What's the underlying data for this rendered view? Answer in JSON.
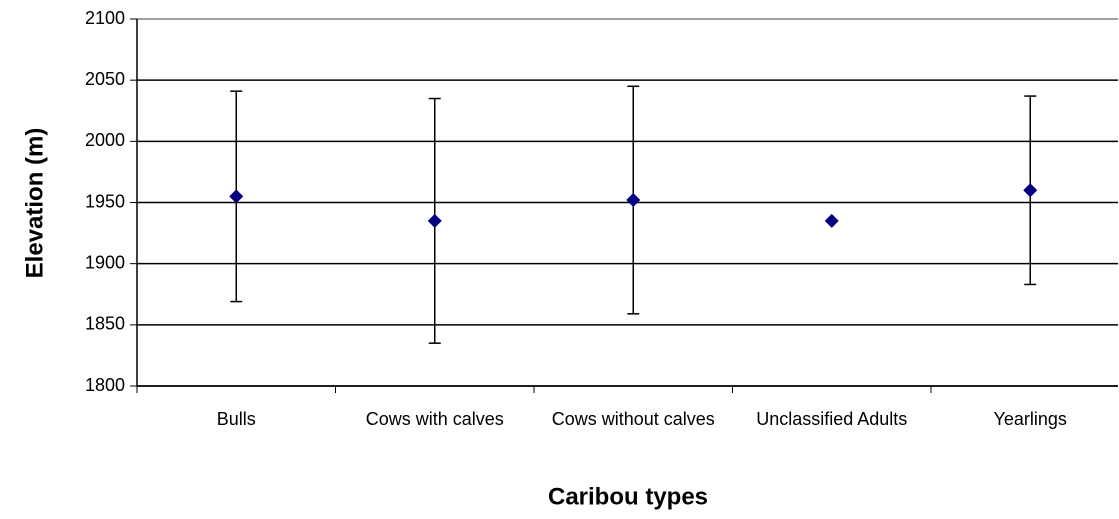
{
  "chart_data": {
    "type": "scatter",
    "x_label": "Caribou types",
    "y_label": "Elevation (m)",
    "categories": [
      "Bulls",
      "Cows with calves",
      "Cows without calves",
      "Unclassified Adults",
      "Yearlings"
    ],
    "values": [
      1955,
      1935,
      1952,
      1935,
      1960
    ],
    "errors": [
      86,
      100,
      93,
      null,
      77
    ],
    "color": "#000080",
    "ylim": [
      1800,
      2100
    ],
    "yticks": [
      1800,
      1850,
      1900,
      1950,
      2000,
      2050,
      2100
    ],
    "grid": true
  }
}
